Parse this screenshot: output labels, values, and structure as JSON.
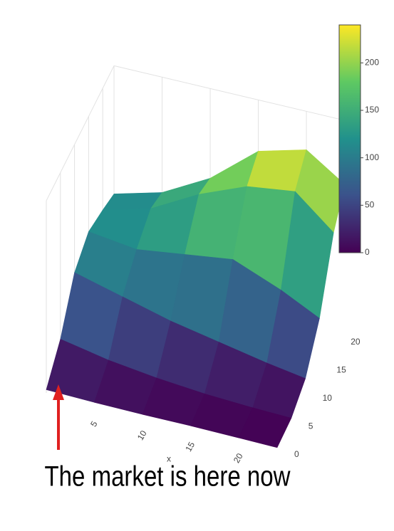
{
  "chart_data": {
    "type": "surface",
    "x": [
      0,
      5,
      10,
      15,
      20,
      24
    ],
    "y": [
      0,
      5,
      10,
      15,
      20,
      24
    ],
    "z": [
      [
        5,
        3,
        2,
        2,
        1,
        0
      ],
      [
        40,
        25,
        15,
        8,
        4,
        2
      ],
      [
        100,
        80,
        60,
        45,
        30,
        20
      ],
      [
        120,
        110,
        120,
        130,
        100,
        70
      ],
      [
        110,
        130,
        170,
        200,
        210,
        160
      ],
      [
        100,
        120,
        160,
        220,
        240,
        200
      ]
    ],
    "xticks": [
      5,
      10,
      15,
      20
    ],
    "yticks": [
      0,
      5,
      10,
      15,
      20
    ],
    "xlabel": "x",
    "colorscale": [
      "#440154",
      "#3b528b",
      "#21918c",
      "#5ec962",
      "#fde725"
    ],
    "clim": [
      0,
      240
    ],
    "colorbar_ticks": [
      0,
      50,
      100,
      150,
      200
    ],
    "annotation": "The market is here now"
  }
}
